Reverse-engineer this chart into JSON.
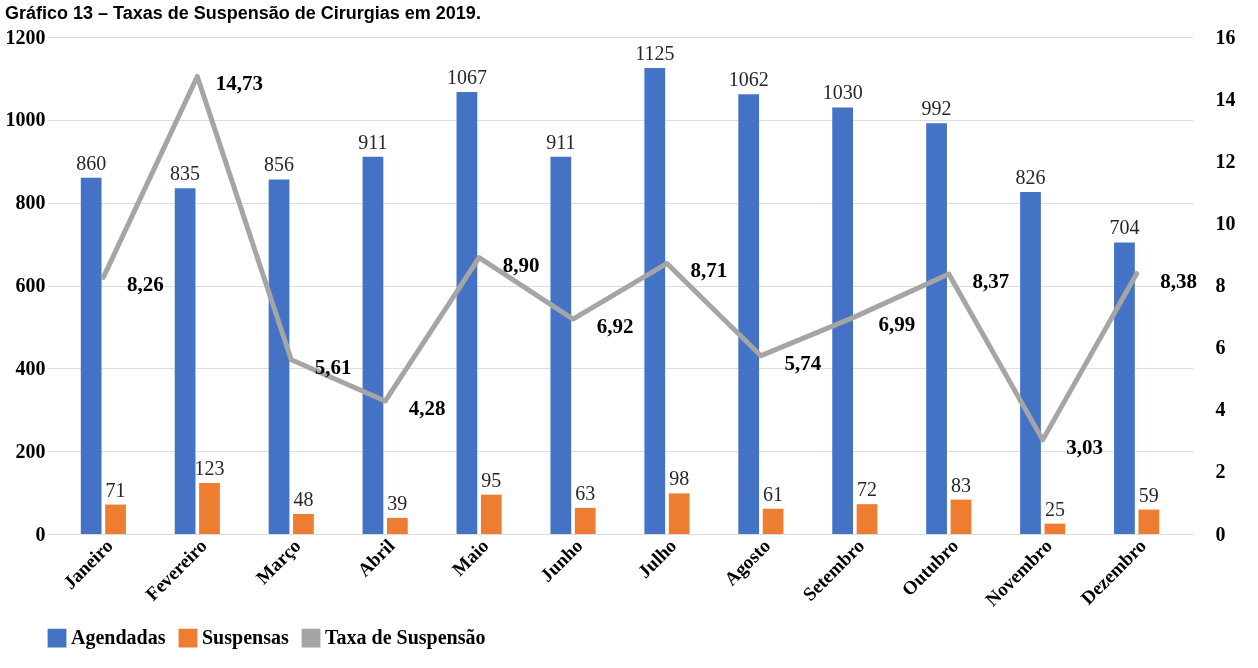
{
  "chart_data": {
    "type": "bar",
    "title": "Gráfico 13 – Taxas de Suspensão de Cirurgias em 2019.",
    "categories": [
      "Janeiro",
      "Fevereiro",
      "Março",
      "Abril",
      "Maio",
      "Junho",
      "Julho",
      "Agosto",
      "Setembro",
      "Outubro",
      "Novembro",
      "Dezembro"
    ],
    "series": [
      {
        "name": "Agendadas",
        "color": "#4472c4",
        "values": [
          860,
          835,
          856,
          911,
          1067,
          911,
          1125,
          1062,
          1030,
          992,
          826,
          704
        ]
      },
      {
        "name": "Suspensas",
        "color": "#ed7d31",
        "values": [
          71,
          123,
          48,
          39,
          95,
          63,
          98,
          61,
          72,
          83,
          25,
          59
        ]
      },
      {
        "name": "Taxa de Suspensão",
        "type": "line",
        "axis": "y2",
        "color": "#a5a5a5",
        "values": [
          8.26,
          14.73,
          5.61,
          4.28,
          8.9,
          6.92,
          8.71,
          5.74,
          6.99,
          8.37,
          3.03,
          8.38
        ],
        "value_labels": [
          "8,26",
          "14,73",
          "5,61",
          "4,28",
          "8,90",
          "6,92",
          "8,71",
          "5,74",
          "6,99",
          "8,37",
          "3,03",
          "8,38"
        ]
      }
    ],
    "ylim": [
      0,
      1200
    ],
    "yticks": [
      0,
      200,
      400,
      600,
      800,
      1000,
      1200
    ],
    "y2lim": [
      0,
      16
    ],
    "y2ticks": [
      0,
      2,
      4,
      6,
      8,
      10,
      12,
      14,
      16
    ],
    "grid": "y",
    "legend": "bottom",
    "data_labels": true
  }
}
